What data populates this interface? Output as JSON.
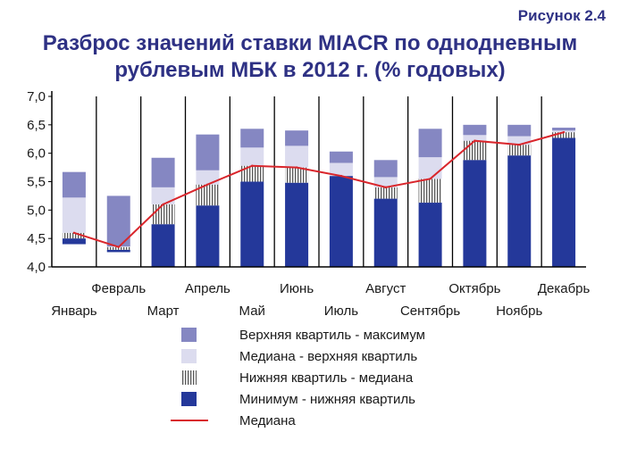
{
  "figure_label": "Рисунок 2.4",
  "title_line1": "Разброс значений ставки MIACR по однодневным",
  "title_line2": "рублевым МБК в 2012 г. (% годовых)",
  "colors": {
    "upper_max": "#8587c2",
    "median_upper": "#dcdcef",
    "lower_median": "#555555",
    "min_lower": "#24389a",
    "median_line": "#d9262c",
    "axis": "#000000",
    "title": "#2e3184"
  },
  "chart_data": {
    "type": "box",
    "title": "Разброс значений ставки MIACR по однодневным рублевым МБК в 2012 г. (% годовых)",
    "ylim": [
      4.0,
      7.0
    ],
    "yticks": [
      "4,0",
      "4,5",
      "5,0",
      "5,5",
      "6,0",
      "6,5",
      "7,0"
    ],
    "ytick_values": [
      4.0,
      4.5,
      5.0,
      5.5,
      6.0,
      6.5,
      7.0
    ],
    "categories": [
      "Январь",
      "Февраль",
      "Март",
      "Апрель",
      "Май",
      "Июнь",
      "Июль",
      "Август",
      "Сентябрь",
      "Октябрь",
      "Ноябрь",
      "Декабрь"
    ],
    "min": [
      4.4,
      4.26,
      4.0,
      4.0,
      4.0,
      4.0,
      4.0,
      4.0,
      4.0,
      4.0,
      4.0,
      4.0
    ],
    "lower_quartile": [
      4.5,
      4.3,
      4.75,
      5.08,
      5.5,
      5.48,
      5.6,
      5.2,
      5.13,
      5.88,
      5.96,
      6.27
    ],
    "median": [
      4.6,
      4.35,
      5.1,
      5.45,
      5.78,
      5.75,
      5.6,
      5.4,
      5.55,
      6.22,
      6.15,
      6.37
    ],
    "upper_quartile": [
      5.22,
      4.36,
      5.4,
      5.7,
      6.1,
      6.13,
      5.83,
      5.58,
      5.93,
      6.32,
      6.3,
      6.4
    ],
    "max": [
      5.67,
      5.25,
      5.92,
      6.33,
      6.43,
      6.4,
      6.03,
      5.88,
      6.43,
      6.5,
      6.5,
      6.45
    ],
    "legend": [
      {
        "key": "upper_max",
        "label": "Верхняя квартиль - максимум"
      },
      {
        "key": "median_upper",
        "label": "Медиана - верхняя квартиль"
      },
      {
        "key": "lower_median",
        "label": "Нижняя квартиль - медиана"
      },
      {
        "key": "min_lower",
        "label": "Минимум - нижняя квартиль"
      },
      {
        "key": "median_line",
        "label": "Медиана"
      }
    ]
  }
}
